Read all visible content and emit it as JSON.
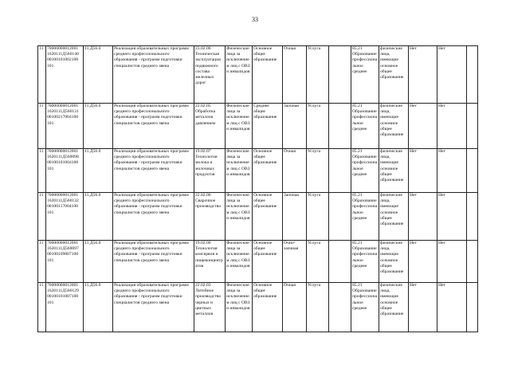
{
  "page_number": "33",
  "rows": [
    {
      "num": "11",
      "code": "70000000012001\n1620111Д560140\n00100101002100\n101",
      "okved": "11.Д56.0",
      "name": "Реализация образовательных программ среднего профессионального образования - программ подготовки специалистов среднего звена",
      "specialty": "23.02.06 Техническая эксплуатация подвижного состава железных дорог",
      "category": "Физические лица за исключением лиц с ОВЗ и инвалидов",
      "level": "Основное общее образование",
      "form": "Очная",
      "type": "Услуга",
      "blank": "",
      "okved_code": "85.21 Образование профессиональное среднее",
      "consumers": "физические лица, имеющие основное общее образование",
      "flag1": "Нет",
      "flag2": "Нет"
    },
    {
      "num": "11",
      "code": "70000000012001\n1620111Д560131\n00100217004100\n101",
      "okved": "11.Д56.0",
      "name": "Реализация образовательных программ среднего профессионального образования - программ подготовки специалистов среднего звена",
      "specialty": "22.02.05 Обработка металлов давлением",
      "category": "Физические лица за исключением лиц с ОВЗ и инвалидов",
      "level": "Среднее общее образование",
      "form": "Заочная",
      "type": "Услуга",
      "blank": "",
      "okved_code": "85.21 Образование профессиональное среднее",
      "consumers": "физические лица, имеющие основное общее образование",
      "flag1": "Нет",
      "flag2": "Нет"
    },
    {
      "num": "11",
      "code": "70000000012001\n1620111Д560098\n00100101004100\n101",
      "okved": "11.Д56.0",
      "name": "Реализация образовательных программ среднего профессионального образования - программ подготовки специалистов среднего звена",
      "specialty": "19.02.07 Технология молока и молочных продуктов",
      "category": "Физические лица за исключением лиц с ОВЗ и инвалидов",
      "level": "Основное общее образование",
      "form": "Очная",
      "type": "Услуга",
      "blank": "",
      "okved_code": "85.21 Образование профессиональное среднее",
      "consumers": "физические лица, имеющие основное общее образование",
      "flag1": "Нет",
      "flag2": "Нет"
    },
    {
      "num": "11",
      "code": "70000000012001\n1620111Д560132\n00100117004100\n101",
      "okved": "11.Д56.0",
      "name": "Реализация образовательных программ среднего профессионального образования - программ подготовки специалистов среднего звена",
      "specialty": "22.02.06 Сварочное производство",
      "category": "Физические лица за исключением лиц с ОВЗ и инвалидов",
      "level": "Основное общее образование",
      "form": "Заочная",
      "type": "Услуга",
      "blank": "",
      "okved_code": "85.21 Образование профессиональное среднее",
      "consumers": "физические лица, имеющие основное общее образование",
      "flag1": "Нет",
      "flag2": "Нет"
    },
    {
      "num": "11",
      "code": "70000000012001\n1620111Д560097\n00100109007100\n101",
      "okved": "11.Д56.0",
      "name": "Реализация образовательных программ среднего профессионального образования - программ подготовки специалистов среднего звена",
      "specialty": "19.02.06 Технология консервов и пищеконцентратов",
      "category": "Физические лица за исключением лиц с ОВЗ и инвалидов",
      "level": "Основное общее образование",
      "form": "Очно-заочная",
      "type": "Услуга",
      "blank": "",
      "okved_code": "85.21 Образование профессиональное среднее",
      "consumers": "физические лица, имеющие основное общее образование",
      "flag1": "Нет",
      "flag2": "Нет"
    },
    {
      "num": "11",
      "code": "70000000012001\n1620111Д560129\n00100101007100\n101",
      "okved": "11.Д56.0",
      "name": "Реализация образовательных программ среднего профессионального образования - программ подготовки специалистов среднего звена",
      "specialty": "22.02.03 Литейное производство черных и цветных металлов",
      "category": "Физические лица за исключением лиц с ОВЗ и инвалидов",
      "level": "Основное общее образование",
      "form": "Очная",
      "type": "Услуга",
      "blank": "",
      "okved_code": "85.21 Образование профессиональное среднее",
      "consumers": "физические лица, имеющие основное общее образование",
      "flag1": "Нет",
      "flag2": "Нет"
    }
  ]
}
